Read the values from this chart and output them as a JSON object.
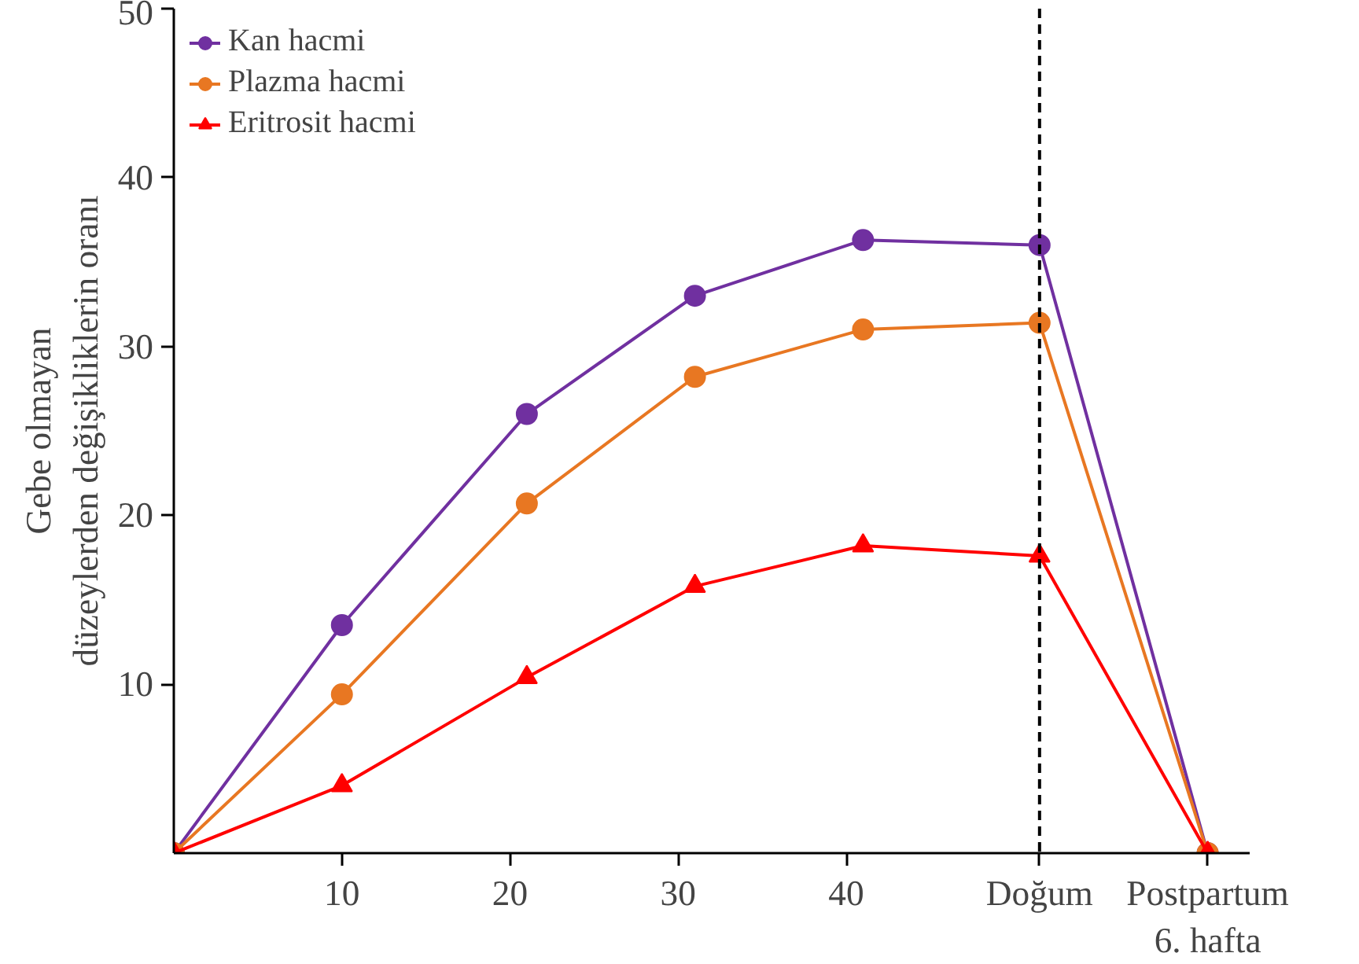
{
  "chart_data": {
    "type": "line",
    "ylabel": "Gebe olmayan\ndüzeylerden değişikliklerin oranı",
    "x": [
      0,
      10,
      21,
      31,
      41,
      51.5,
      61.5
    ],
    "series": [
      {
        "name": "Kan hacmi",
        "color": "#7030a0",
        "marker": "circle",
        "values": [
          0,
          13.5,
          26,
          33,
          36.3,
          36,
          0
        ]
      },
      {
        "name": "Plazma hacmi",
        "color": "#e87722",
        "marker": "circle",
        "values": [
          0,
          9.4,
          20.7,
          28.2,
          31,
          31.4,
          0
        ]
      },
      {
        "name": "Eritrosit hacmi",
        "color": "#ff0000",
        "marker": "triangle",
        "values": [
          0,
          4,
          10.4,
          15.8,
          18.2,
          17.6,
          0
        ]
      }
    ],
    "xlim": [
      0,
      64
    ],
    "ylim": [
      0,
      50
    ],
    "xticks": [
      10,
      20,
      30,
      40,
      {
        "value": 51.5,
        "label": "Doğum"
      },
      {
        "value": 61.5,
        "label": "Postpartum\n6. hafta"
      }
    ],
    "yticks": [
      10,
      20,
      30,
      40,
      50
    ],
    "ref_lines": [
      {
        "axis": "x",
        "value": 51.5,
        "color": "#000000",
        "line_style": "dashed"
      }
    ],
    "grid": false,
    "legend": "top left",
    "line_style": "solid"
  }
}
